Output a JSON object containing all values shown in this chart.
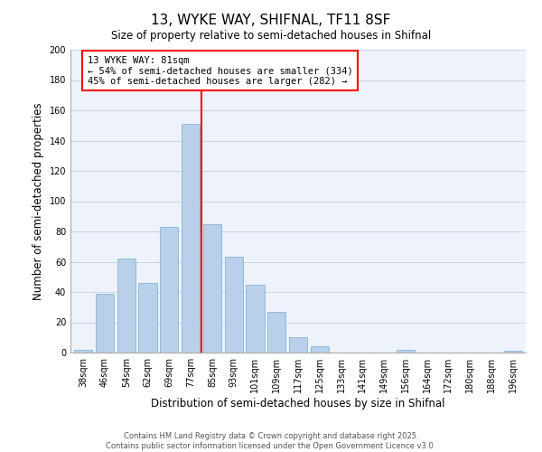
{
  "title": "13, WYKE WAY, SHIFNAL, TF11 8SF",
  "subtitle": "Size of property relative to semi-detached houses in Shifnal",
  "xlabel": "Distribution of semi-detached houses by size in Shifnal",
  "ylabel": "Number of semi-detached properties",
  "categories": [
    "38sqm",
    "46sqm",
    "54sqm",
    "62sqm",
    "69sqm",
    "77sqm",
    "85sqm",
    "93sqm",
    "101sqm",
    "109sqm",
    "117sqm",
    "125sqm",
    "133sqm",
    "141sqm",
    "149sqm",
    "156sqm",
    "164sqm",
    "172sqm",
    "180sqm",
    "188sqm",
    "196sqm"
  ],
  "values": [
    2,
    39,
    62,
    46,
    83,
    151,
    85,
    63,
    45,
    27,
    10,
    4,
    0,
    0,
    0,
    2,
    0,
    0,
    0,
    0,
    1
  ],
  "bar_color": "#b8d0ea",
  "bar_edge_color": "#7aaacf",
  "bar_width": 0.85,
  "vline_color": "red",
  "vline_label": "13 WYKE WAY: 81sqm",
  "annotation_line1": "← 54% of semi-detached houses are smaller (334)",
  "annotation_line2": "45% of semi-detached houses are larger (282) →",
  "annotation_box_color": "white",
  "annotation_box_edge_color": "red",
  "ylim": [
    0,
    200
  ],
  "yticks": [
    0,
    20,
    40,
    60,
    80,
    100,
    120,
    140,
    160,
    180,
    200
  ],
  "footer_line1": "Contains HM Land Registry data © Crown copyright and database right 2025.",
  "footer_line2": "Contains public sector information licensed under the Open Government Licence v3.0.",
  "bg_color": "#eef3fb",
  "grid_color": "#c5d5e8",
  "title_fontsize": 11,
  "axis_label_fontsize": 8.5,
  "tick_fontsize": 7,
  "annotation_fontsize": 7.5,
  "footer_fontsize": 6
}
